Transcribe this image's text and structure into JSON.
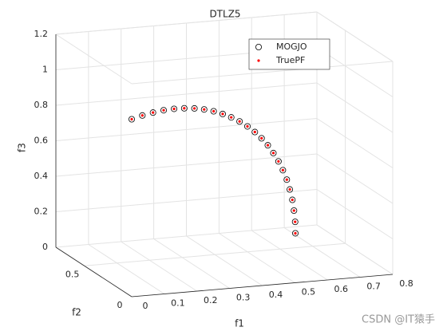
{
  "chart_data": {
    "type": "scatter3d",
    "title": "DTLZ5",
    "xlabel": "f1",
    "ylabel": "f2",
    "zlabel": "f3",
    "xlim": [
      0,
      0.8
    ],
    "ylim": [
      0,
      0.8
    ],
    "zlim": [
      0,
      1.2
    ],
    "xticks": [
      0,
      0.1,
      0.2,
      0.3,
      0.4,
      0.5,
      0.6,
      0.7,
      0.8
    ],
    "yticks": [
      0,
      0.5
    ],
    "zticks": [
      0,
      0.2,
      0.4,
      0.6,
      0.8,
      1,
      1.2
    ],
    "grid": true,
    "legend": "northeast",
    "series": [
      {
        "name": "MOGJO",
        "color": "#000000",
        "marker": "circle",
        "x": [
          0.707,
          0.706,
          0.701,
          0.694,
          0.683,
          0.67,
          0.653,
          0.634,
          0.612,
          0.588,
          0.561,
          0.532,
          0.5,
          0.466,
          0.43,
          0.393,
          0.354,
          0.313,
          0.271,
          0.227,
          0.183,
          0.138,
          0.092,
          0.046,
          0
        ],
        "y": [
          0.707,
          0.706,
          0.701,
          0.694,
          0.683,
          0.67,
          0.653,
          0.634,
          0.612,
          0.588,
          0.561,
          0.532,
          0.5,
          0.466,
          0.43,
          0.393,
          0.354,
          0.313,
          0.271,
          0.227,
          0.183,
          0.138,
          0.092,
          0.046,
          0
        ],
        "z": [
          0,
          0.065,
          0.131,
          0.195,
          0.259,
          0.321,
          0.383,
          0.442,
          0.5,
          0.556,
          0.609,
          0.659,
          0.707,
          0.752,
          0.793,
          0.831,
          0.866,
          0.897,
          0.924,
          0.947,
          0.966,
          0.981,
          0.991,
          0.998,
          1
        ]
      },
      {
        "name": "TruePF",
        "color": "#ff0000",
        "marker": "dot",
        "x": [
          0.707,
          0.706,
          0.701,
          0.694,
          0.683,
          0.67,
          0.653,
          0.634,
          0.612,
          0.588,
          0.561,
          0.532,
          0.5,
          0.466,
          0.43,
          0.393,
          0.354,
          0.313,
          0.271,
          0.227,
          0.183,
          0.138,
          0.092,
          0.046,
          0
        ],
        "y": [
          0.707,
          0.706,
          0.701,
          0.694,
          0.683,
          0.67,
          0.653,
          0.634,
          0.612,
          0.588,
          0.561,
          0.532,
          0.5,
          0.466,
          0.43,
          0.393,
          0.354,
          0.313,
          0.271,
          0.227,
          0.183,
          0.138,
          0.092,
          0.046,
          0
        ],
        "z": [
          0,
          0.065,
          0.131,
          0.195,
          0.259,
          0.321,
          0.383,
          0.442,
          0.5,
          0.556,
          0.609,
          0.659,
          0.707,
          0.752,
          0.793,
          0.831,
          0.866,
          0.897,
          0.924,
          0.947,
          0.966,
          0.981,
          0.991,
          0.998,
          1
        ]
      }
    ],
    "watermark": "CSDN @IT猿手"
  }
}
